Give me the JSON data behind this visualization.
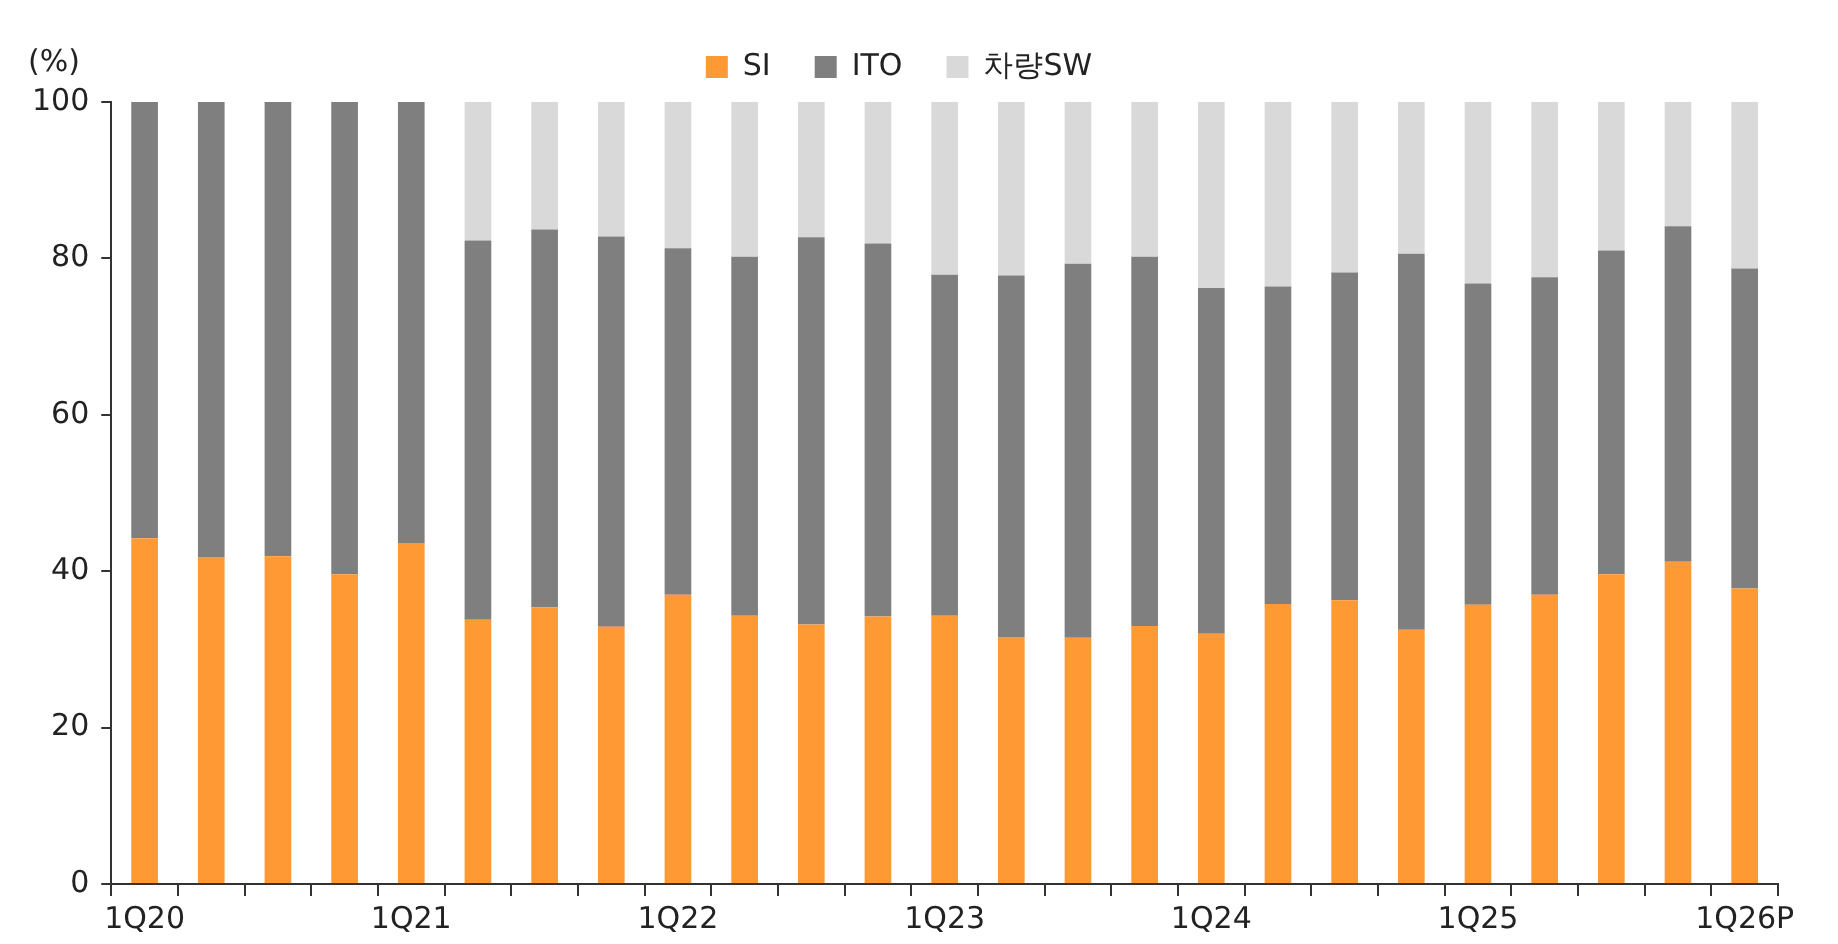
{
  "chart_data": {
    "type": "bar",
    "stacked": true,
    "ylabel": "(%)",
    "legend": "top",
    "grid": false,
    "categories": [
      "1Q20",
      null,
      null,
      null,
      "1Q21",
      null,
      null,
      null,
      "1Q22",
      null,
      null,
      null,
      "1Q23",
      null,
      null,
      null,
      "1Q24",
      null,
      null,
      null,
      "1Q25",
      null,
      null,
      null,
      "1Q26P"
    ],
    "series": [
      {
        "name": "SI",
        "color": "#ff9933",
        "values": [
          44.2,
          41.8,
          41.9,
          39.6,
          43.6,
          33.8,
          35.4,
          32.9,
          37.0,
          34.3,
          33.2,
          34.2,
          34.3,
          31.6,
          31.5,
          33.0,
          32.0,
          35.8,
          36.3,
          32.5,
          35.7,
          37.0,
          39.6,
          41.2,
          37.8
        ]
      },
      {
        "name": "ITO",
        "color": "#7f7f7f",
        "values": [
          55.8,
          58.2,
          58.1,
          60.4,
          56.4,
          48.5,
          48.3,
          49.9,
          44.3,
          45.9,
          49.5,
          47.7,
          43.6,
          46.2,
          47.8,
          47.2,
          44.2,
          40.6,
          41.9,
          48.1,
          41.1,
          40.6,
          41.4,
          42.9,
          40.9
        ]
      },
      {
        "name": "차량SW",
        "color": "#d9d9d9",
        "values": [
          0,
          0,
          0,
          0,
          0,
          17.7,
          16.3,
          17.2,
          18.7,
          19.8,
          17.3,
          18.1,
          22.1,
          22.2,
          20.7,
          19.8,
          23.8,
          23.6,
          21.8,
          19.4,
          23.2,
          22.4,
          19.0,
          15.9,
          21.3
        ]
      }
    ],
    "ylim": [
      0,
      100
    ],
    "yticks": [
      0,
      20,
      40,
      60,
      80,
      100
    ]
  }
}
